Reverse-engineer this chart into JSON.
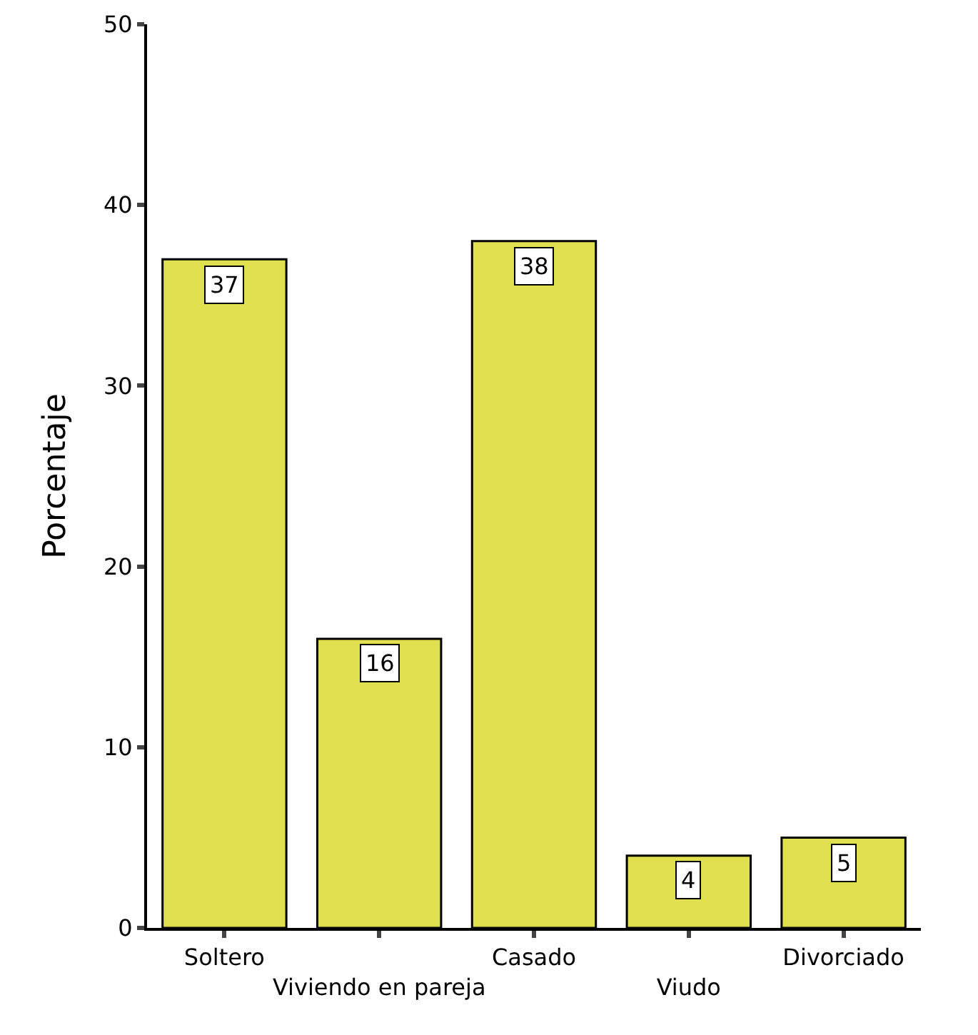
{
  "chart_data": {
    "type": "bar",
    "ylabel": "Porcentaje",
    "categories": [
      "Soltero",
      "Viviendo en pareja",
      "Casado",
      "Viudo",
      "Divorciado"
    ],
    "values": [
      37,
      16,
      38,
      4,
      5
    ],
    "color": "#dfdf4f",
    "ylim": [
      0,
      50
    ],
    "yticks": [
      0,
      10,
      20,
      30,
      40,
      50
    ],
    "grid": false,
    "data_labels": true
  }
}
